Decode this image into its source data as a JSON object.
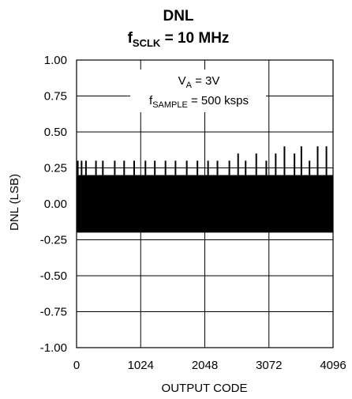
{
  "chart_data": {
    "type": "line",
    "title": "DNL",
    "subtitle": {
      "prefix": "f",
      "sub": "SCLK",
      "suffix": " = 10 MHz"
    },
    "annotation": {
      "line1": {
        "prefix": "V",
        "sub": "A",
        "suffix": " = 3V"
      },
      "line2": {
        "prefix": "f",
        "sub": "SAMPLE",
        "suffix": " = 500 ksps"
      }
    },
    "xlabel": "OUTPUT CODE",
    "ylabel": "DNL (LSB)",
    "xlim": [
      0,
      4096
    ],
    "ylim": [
      -1.0,
      1.0
    ],
    "x_ticks": [
      0,
      1024,
      2048,
      3072,
      4096
    ],
    "x_tick_labels": [
      "0",
      "1024",
      "2048",
      "3072",
      "4096"
    ],
    "y_ticks": [
      1.0,
      0.75,
      0.5,
      0.25,
      0.0,
      -0.25,
      -0.5,
      -0.75,
      -1.0
    ],
    "y_tick_labels": [
      "1.00",
      "0.75",
      "0.50",
      "0.25",
      "0.00",
      "-0.25",
      "-0.50",
      "-0.75",
      "-1.00"
    ],
    "grid": true,
    "series": [
      {
        "color": "#000000",
        "band": {
          "min": -0.2,
          "max": 0.2
        },
        "spikes_pos": [
          {
            "x": 20,
            "y": 0.3
          },
          {
            "x": 80,
            "y": 0.3
          },
          {
            "x": 150,
            "y": 0.3
          },
          {
            "x": 310,
            "y": 0.3
          },
          {
            "x": 420,
            "y": 0.3
          },
          {
            "x": 610,
            "y": 0.3
          },
          {
            "x": 760,
            "y": 0.3
          },
          {
            "x": 920,
            "y": 0.3
          },
          {
            "x": 1100,
            "y": 0.3
          },
          {
            "x": 1250,
            "y": 0.3
          },
          {
            "x": 1420,
            "y": 0.3
          },
          {
            "x": 1580,
            "y": 0.3
          },
          {
            "x": 1760,
            "y": 0.3
          },
          {
            "x": 1930,
            "y": 0.3
          },
          {
            "x": 2100,
            "y": 0.3
          },
          {
            "x": 2250,
            "y": 0.3
          },
          {
            "x": 2440,
            "y": 0.3
          },
          {
            "x": 2580,
            "y": 0.35
          },
          {
            "x": 2700,
            "y": 0.3
          },
          {
            "x": 2870,
            "y": 0.35
          },
          {
            "x": 3030,
            "y": 0.3
          },
          {
            "x": 3180,
            "y": 0.35
          },
          {
            "x": 3320,
            "y": 0.4
          },
          {
            "x": 3480,
            "y": 0.35
          },
          {
            "x": 3590,
            "y": 0.4
          },
          {
            "x": 3720,
            "y": 0.3
          },
          {
            "x": 3850,
            "y": 0.4
          },
          {
            "x": 3990,
            "y": 0.4
          }
        ],
        "spikes_neg": [
          {
            "x": 40,
            "y": -0.2
          },
          {
            "x": 190,
            "y": -0.2
          },
          {
            "x": 360,
            "y": -0.2
          },
          {
            "x": 470,
            "y": -0.2
          },
          {
            "x": 560,
            "y": -0.2
          },
          {
            "x": 690,
            "y": -0.2
          },
          {
            "x": 810,
            "y": -0.2
          },
          {
            "x": 980,
            "y": -0.2
          },
          {
            "x": 1150,
            "y": -0.2
          },
          {
            "x": 1340,
            "y": -0.2
          },
          {
            "x": 1490,
            "y": -0.2
          },
          {
            "x": 1700,
            "y": -0.2
          },
          {
            "x": 1880,
            "y": -0.2
          },
          {
            "x": 2050,
            "y": -0.2
          },
          {
            "x": 2230,
            "y": -0.2
          },
          {
            "x": 2400,
            "y": -0.2
          },
          {
            "x": 2560,
            "y": -0.2
          },
          {
            "x": 2730,
            "y": -0.2
          },
          {
            "x": 2910,
            "y": -0.2
          },
          {
            "x": 3060,
            "y": -0.2
          },
          {
            "x": 3240,
            "y": -0.2
          },
          {
            "x": 3400,
            "y": -0.2
          },
          {
            "x": 3560,
            "y": -0.2
          },
          {
            "x": 3700,
            "y": -0.2
          },
          {
            "x": 3860,
            "y": -0.2
          },
          {
            "x": 4020,
            "y": -0.2
          }
        ]
      }
    ]
  }
}
